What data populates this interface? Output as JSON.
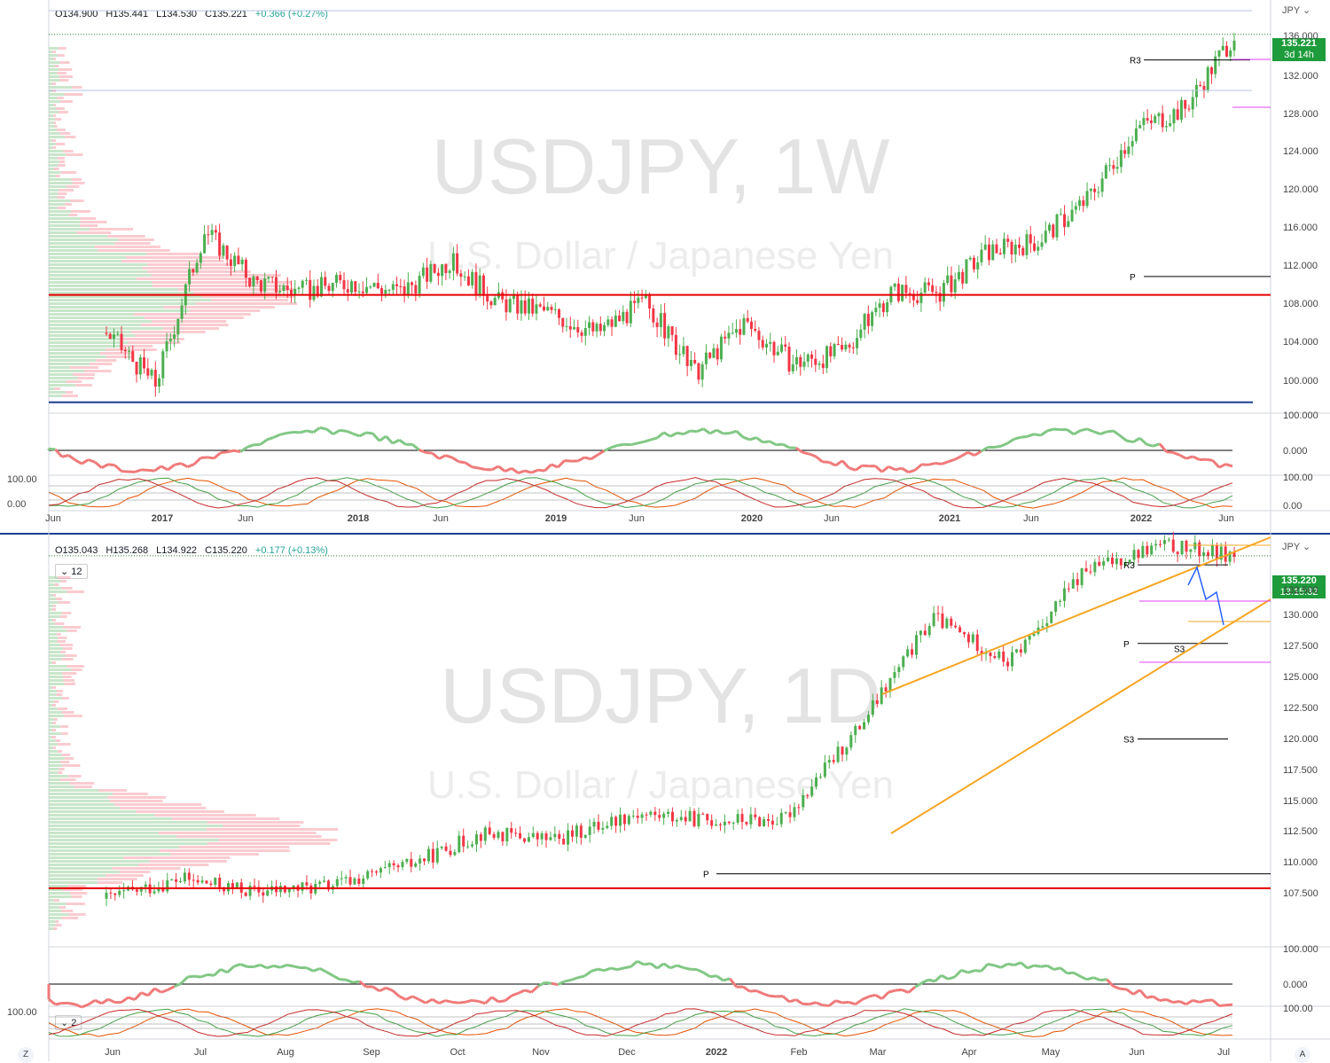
{
  "colors": {
    "up": "#4caf50",
    "down": "#f23645",
    "upLight": "#a5d6a7",
    "downLight": "#f7a9b0",
    "axis": "#444",
    "orange": "#f6a623",
    "magenta": "#e040fb",
    "blue": "#1c3f94",
    "green": "#2e7d32",
    "red": "#e60000"
  },
  "top": {
    "ohlc": {
      "o": "O134.900",
      "h": "H135.441",
      "l": "L134.530",
      "c": "C135.221",
      "chg": "+0.366 (+0.27%)"
    },
    "watermark": "USDJPY, 1W",
    "subtitle": "U.S. Dollar / Japanese Yen",
    "currency": "JPY",
    "price_badge": "135.221",
    "countdown": "3d 14h",
    "y_ticks": [
      "136.000",
      "132.000",
      "128.000",
      "124.000",
      "120.000",
      "116.000",
      "112.000",
      "108.000",
      "104.000",
      "100.000"
    ],
    "x_ticks": [
      "Jun",
      "2017",
      "Jun",
      "2018",
      "Jun",
      "2019",
      "Jun",
      "2020",
      "Jun",
      "2021",
      "Jun",
      "2022",
      "Jun"
    ],
    "labels": {
      "r3": "R3",
      "p": "P"
    },
    "osc1_ticks": [
      "100.000",
      "0.000"
    ],
    "osc2_ticks": [
      "100.00",
      "0.00"
    ],
    "osc2_left": [
      "100.00",
      "0.00"
    ]
  },
  "bottom": {
    "ohlc": {
      "o": "O135.043",
      "h": "H135.268",
      "l": "L134.922",
      "c": "C135.220",
      "chg": "+0.177 (+0.13%)"
    },
    "watermark": "USDJPY, 1D",
    "subtitle": "U.S. Dollar / Japanese Yen",
    "currency": "JPY",
    "interval": "12",
    "price_badge": "135.220",
    "countdown": "13:15:32",
    "y_ticks": [
      "132.500",
      "130.000",
      "127.500",
      "125.000",
      "122.500",
      "120.000",
      "117.500",
      "115.000",
      "112.500",
      "110.000",
      "107.500"
    ],
    "x_ticks": [
      "Jun",
      "Jul",
      "Aug",
      "Sep",
      "Oct",
      "Nov",
      "Dec",
      "2022",
      "Feb",
      "Mar",
      "Apr",
      "May",
      "Jun",
      "Jul"
    ],
    "labels": {
      "r3": "R3",
      "p_upper": "P",
      "s3_upper": "S3",
      "s3_lower": "S3",
      "p_lower": "P"
    },
    "osc1_ticks": [
      "100.000",
      "0.000"
    ],
    "osc2_ticks": [
      "100.00"
    ],
    "osc2_left": "100.00",
    "osc2_interval": "2"
  },
  "footer": {
    "left": "Z",
    "right": "A"
  },
  "chart_data": [
    {
      "type": "line",
      "title": "USDJPY, 1W",
      "subtitle": "U.S. Dollar / Japanese Yen",
      "ylim": [
        99,
        137
      ],
      "x": [
        "2016-06",
        "2016-09",
        "2017-01",
        "2017-06",
        "2017-09",
        "2018-01",
        "2018-06",
        "2018-10",
        "2019-01",
        "2019-06",
        "2019-08",
        "2020-01",
        "2020-03",
        "2020-06",
        "2020-12",
        "2021-01",
        "2021-03",
        "2021-06",
        "2021-10",
        "2022-01",
        "2022-03",
        "2022-04",
        "2022-05",
        "2022-06"
      ],
      "series": [
        {
          "values": [
            106,
            101,
            116,
            111,
            110,
            111,
            110,
            113,
            109,
            108,
            106,
            109,
            102,
            107,
            103,
            104,
            110,
            110,
            114,
            115,
            119,
            126,
            128,
            135.221
          ]
        }
      ],
      "levels": {
        "R3": 132.7,
        "P": 111.5,
        "support": 99.2,
        "pivot_red": 109.7
      }
    },
    {
      "type": "line",
      "title": "USDJPY, 1D",
      "subtitle": "U.S. Dollar / Japanese Yen",
      "ylim": [
        106,
        136
      ],
      "x": [
        "2021-05-20",
        "2021-07-01",
        "2021-08-01",
        "2021-09-01",
        "2021-10-01",
        "2021-11-01",
        "2021-12-01",
        "2022-01-01",
        "2022-02-01",
        "2022-03-01",
        "2022-04-01",
        "2022-04-28",
        "2022-05-24",
        "2022-06-10",
        "2022-06-22",
        "2022-06-30"
      ],
      "series": [
        {
          "values": [
            109,
            110.5,
            109.5,
            110,
            111.5,
            114,
            113.5,
            115.5,
            115,
            115,
            122,
            130.5,
            127,
            134,
            136,
            135.22
          ]
        }
      ],
      "levels": {
        "R3": 134.5,
        "P_upper": 128.5,
        "S3_upper": 128.1,
        "S3_lower": 121.2,
        "P_lower": 110.9,
        "support_red": 109.8
      }
    }
  ]
}
